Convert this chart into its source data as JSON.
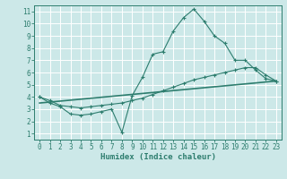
{
  "title": "",
  "xlabel": "Humidex (Indice chaleur)",
  "ylabel": "",
  "background_color": "#cce8e8",
  "grid_color": "#ffffff",
  "line_color": "#2d7d6e",
  "xlim": [
    -0.5,
    23.5
  ],
  "ylim": [
    0.5,
    11.5
  ],
  "xticks": [
    0,
    1,
    2,
    3,
    4,
    5,
    6,
    7,
    8,
    9,
    10,
    11,
    12,
    13,
    14,
    15,
    16,
    17,
    18,
    19,
    20,
    21,
    22,
    23
  ],
  "yticks": [
    1,
    2,
    3,
    4,
    5,
    6,
    7,
    8,
    9,
    10,
    11
  ],
  "series1_x": [
    0,
    1,
    2,
    3,
    4,
    5,
    6,
    7,
    8,
    9,
    10,
    11,
    12,
    13,
    14,
    15,
    16,
    17,
    18,
    19,
    20,
    21,
    22,
    23
  ],
  "series1_y": [
    4.0,
    3.5,
    3.2,
    2.6,
    2.5,
    2.6,
    2.8,
    3.0,
    1.1,
    4.1,
    5.6,
    7.5,
    7.7,
    9.4,
    10.5,
    11.2,
    10.2,
    9.0,
    8.4,
    7.0,
    7.0,
    6.2,
    5.5,
    5.3
  ],
  "series2_x": [
    0,
    1,
    2,
    3,
    4,
    5,
    6,
    7,
    8,
    9,
    10,
    11,
    12,
    13,
    14,
    15,
    16,
    17,
    18,
    19,
    20,
    21,
    22,
    23
  ],
  "series2_y": [
    4.0,
    3.7,
    3.3,
    3.2,
    3.1,
    3.2,
    3.3,
    3.4,
    3.5,
    3.7,
    3.9,
    4.2,
    4.5,
    4.8,
    5.1,
    5.4,
    5.6,
    5.8,
    6.0,
    6.2,
    6.4,
    6.4,
    5.8,
    5.3
  ],
  "series3_x": [
    0,
    23
  ],
  "series3_y": [
    3.5,
    5.3
  ]
}
